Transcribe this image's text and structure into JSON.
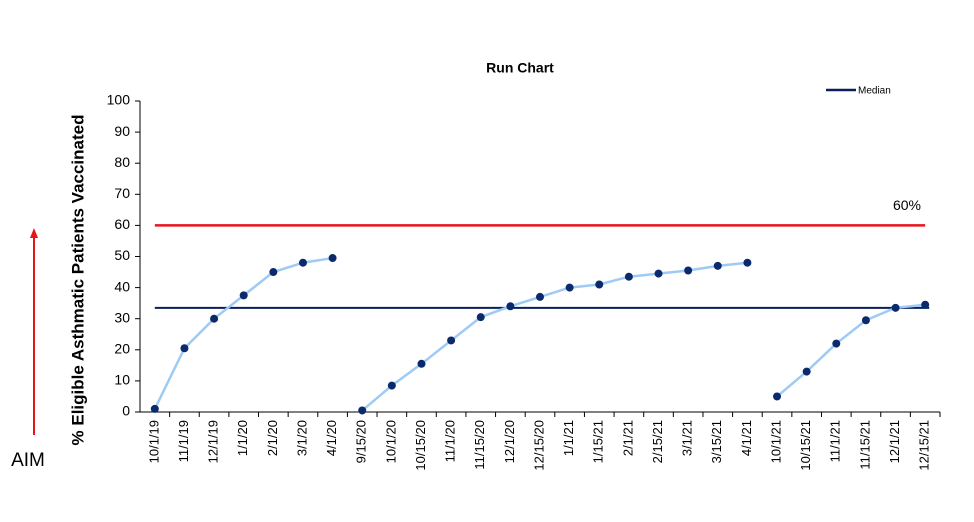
{
  "chart_data": {
    "type": "line",
    "title": "Run Chart",
    "ylabel": "% Eligible Asthmatic Patients Vaccinated",
    "annotation": "AIM",
    "categories": [
      "10/1/19",
      "11/1/19",
      "12/1/19",
      "1/1/20",
      "2/1/20",
      "3/1/20",
      "4/1/20",
      "9/15/20",
      "10/1/20",
      "10/15/20",
      "11/1/20",
      "11/15/20",
      "12/1/20",
      "12/15/20",
      "1/1/21",
      "1/15/21",
      "2/1/21",
      "2/15/21",
      "3/1/21",
      "3/15/21",
      "4/1/21",
      "10/1/21",
      "10/15/21",
      "11/1/21",
      "11/15/21",
      "12/1/21",
      "12/15/21"
    ],
    "series": [
      {
        "color": "#9ecbf5",
        "marker_color": "#0b2a6b",
        "values": [
          1,
          20.5,
          30,
          37.5,
          45,
          48,
          49.5,
          null,
          null,
          null,
          null,
          null,
          null,
          null,
          null,
          null,
          null,
          null,
          null,
          null,
          null,
          null,
          null,
          null,
          null,
          null,
          null
        ]
      },
      {
        "color": "#9ecbf5",
        "marker_color": "#0b2a6b",
        "values": [
          null,
          null,
          null,
          null,
          null,
          null,
          null,
          0.5,
          8.5,
          15.5,
          23,
          30.5,
          34,
          37,
          40,
          41,
          43.5,
          44.5,
          45.5,
          47,
          48,
          null,
          null,
          null,
          null,
          null,
          null
        ]
      },
      {
        "color": "#9ecbf5",
        "marker_color": "#0b2a6b",
        "values": [
          null,
          null,
          null,
          null,
          null,
          null,
          null,
          null,
          null,
          null,
          null,
          null,
          null,
          null,
          null,
          null,
          null,
          null,
          null,
          null,
          null,
          5,
          13,
          22,
          29.5,
          33.5,
          34.5
        ]
      }
    ],
    "median": {
      "name": "Median",
      "value": 33.5,
      "color": "#0c1f5c"
    },
    "goal": {
      "value": 60,
      "label": "60%",
      "color": "#e8141b"
    },
    "ylim": [
      0,
      100
    ],
    "yticks": [
      0,
      10,
      20,
      30,
      40,
      50,
      60,
      70,
      80,
      90,
      100
    ]
  }
}
